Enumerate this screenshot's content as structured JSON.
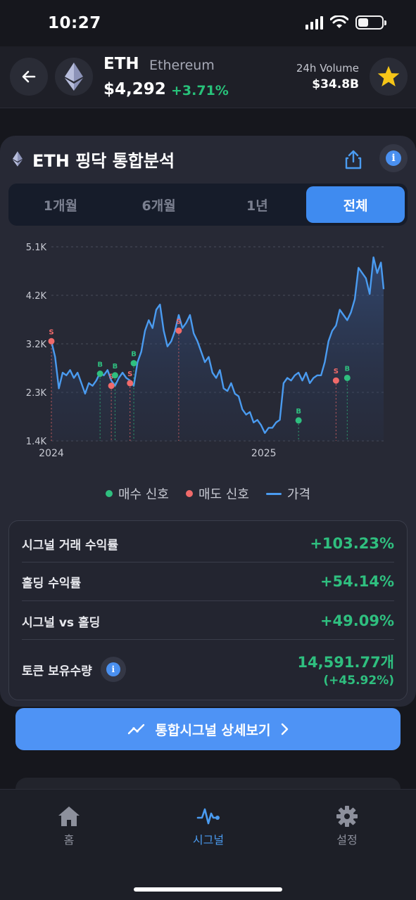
{
  "status_bar": {
    "time": "10:27"
  },
  "header": {
    "symbol": "ETH",
    "name": "Ethereum",
    "price": "$4,292",
    "change": "+3.71%",
    "volume_label": "24h Volume",
    "volume_value": "$34.8B"
  },
  "card": {
    "title": "ETH 핑닥 통합분석",
    "tabs": [
      {
        "label": "1개월"
      },
      {
        "label": "6개월"
      },
      {
        "label": "1년"
      },
      {
        "label": "전체",
        "active": true
      }
    ]
  },
  "chart_data": {
    "type": "line",
    "y_ticks": [
      "5.1K",
      "4.2K",
      "3.2K",
      "2.3K",
      "1.4K"
    ],
    "ylim": [
      1400,
      5100
    ],
    "x_ticks": [
      "2024",
      "2025"
    ],
    "legend": [
      "매수 신호",
      "매도 신호",
      "가격"
    ],
    "series": [
      {
        "x": [
          "2023-12-01",
          "2023-12-08",
          "2023-12-15",
          "2023-12-22",
          "2023-12-29",
          "2024-01-05",
          "2024-01-12",
          "2024-01-19",
          "2024-01-26",
          "2024-02-02",
          "2024-02-09",
          "2024-02-16",
          "2024-02-23",
          "2024-03-01",
          "2024-03-08",
          "2024-03-15",
          "2024-03-22",
          "2024-03-29",
          "2024-04-05",
          "2024-04-12",
          "2024-04-19",
          "2024-04-26",
          "2024-05-03",
          "2024-05-10",
          "2024-05-17",
          "2024-05-24",
          "2024-05-31",
          "2024-06-07",
          "2024-06-14",
          "2024-06-21",
          "2024-06-28",
          "2024-07-05",
          "2024-07-12",
          "2024-07-19",
          "2024-07-26",
          "2024-08-02",
          "2024-08-09",
          "2024-08-16",
          "2024-08-23",
          "2024-08-30",
          "2024-09-06",
          "2024-09-13",
          "2024-09-20",
          "2024-09-27",
          "2024-10-04",
          "2024-10-11",
          "2024-10-18",
          "2024-10-25",
          "2024-11-01",
          "2024-11-08",
          "2024-11-15",
          "2024-11-22",
          "2024-11-29",
          "2024-12-06",
          "2024-12-13",
          "2024-12-20",
          "2024-12-27",
          "2025-01-03",
          "2025-01-10",
          "2025-01-17",
          "2025-01-24",
          "2025-01-31",
          "2025-02-07",
          "2025-02-14",
          "2025-02-21",
          "2025-02-28",
          "2025-03-07",
          "2025-03-14",
          "2025-03-21",
          "2025-03-28",
          "2025-04-04",
          "2025-04-11",
          "2025-04-18",
          "2025-04-25",
          "2025-05-02",
          "2025-05-09",
          "2025-05-16",
          "2025-05-23",
          "2025-05-30",
          "2025-06-06",
          "2025-06-13",
          "2025-06-20",
          "2025-06-27",
          "2025-07-04",
          "2025-07-11",
          "2025-07-18",
          "2025-07-25",
          "2025-08-01",
          "2025-08-08",
          "2025-08-13"
        ],
        "name": "가격",
        "values": [
          3300,
          3000,
          2400,
          2700,
          2650,
          2750,
          2600,
          2700,
          2500,
          2300,
          2500,
          2450,
          2550,
          2700,
          2650,
          2750,
          2550,
          2450,
          2600,
          2700,
          2600,
          2550,
          2450,
          2900,
          3100,
          3500,
          3700,
          3550,
          3900,
          4000,
          3500,
          3200,
          3300,
          3500,
          3800,
          3550,
          3650,
          3800,
          3450,
          3300,
          3100,
          2900,
          3000,
          2700,
          2600,
          2750,
          2400,
          2350,
          2500,
          2300,
          2250,
          2000,
          1900,
          1950,
          1750,
          1800,
          1700,
          1550,
          1650,
          1650,
          1750,
          1800,
          2500,
          2600,
          2550,
          2650,
          2700,
          2550,
          2700,
          2500,
          2600,
          2650,
          2650,
          2900,
          3300,
          3500,
          3600,
          3900,
          3800,
          3700,
          3850,
          4100,
          4700,
          4600,
          4500,
          4200,
          4900,
          4600,
          4800,
          4292
        ],
        "buy_signals": [
          {
            "x": "2024-03-01",
            "y": 2680,
            "label": "B"
          },
          {
            "x": "2024-03-29",
            "y": 2650,
            "label": "B"
          },
          {
            "x": "2024-05-03",
            "y": 2880,
            "label": "B"
          },
          {
            "x": "2025-03-07",
            "y": 1790,
            "label": "B"
          },
          {
            "x": "2025-06-06",
            "y": 2600,
            "label": "B"
          }
        ],
        "sell_signals": [
          {
            "x": "2023-12-01",
            "y": 3300,
            "label": "S"
          },
          {
            "x": "2024-03-22",
            "y": 2450,
            "label": "S"
          },
          {
            "x": "2024-04-26",
            "y": 2500,
            "label": "S"
          },
          {
            "x": "2024-07-26",
            "y": 3500,
            "label": "S"
          },
          {
            "x": "2025-05-16",
            "y": 2550,
            "label": "S"
          }
        ]
      }
    ],
    "colors": {
      "line": "#4a9bf0",
      "buy": "#2fbf7f",
      "sell": "#f06a6a"
    }
  },
  "legend": {
    "buy": "매수 신호",
    "sell": "매도 신호",
    "price": "가격"
  },
  "stats": {
    "rows": [
      {
        "label": "시그널 거래 수익률",
        "value": "+103.23%"
      },
      {
        "label": "홀딩 수익률",
        "value": "+54.14%"
      },
      {
        "label": "시그널 vs 홀딩",
        "value": "+49.09%"
      }
    ],
    "token_label": "토큰 보유수량",
    "token_value": "14,591.77개",
    "token_change": "(+45.92%)"
  },
  "cta": {
    "label": "통합시그널 상세보기"
  },
  "tabbar": {
    "items": [
      {
        "label": "홈",
        "icon": "home-icon"
      },
      {
        "label": "시그널",
        "icon": "pulse-icon",
        "active": true
      },
      {
        "label": "설정",
        "icon": "gear-icon"
      }
    ]
  }
}
